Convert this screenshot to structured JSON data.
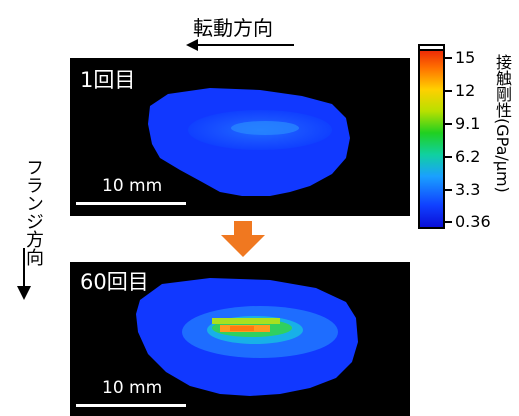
{
  "figure": {
    "rotation_direction_label": "転動方向",
    "flange_direction_label": "フランジ方向",
    "panels": [
      {
        "label": "1回目",
        "scale_bar": "10 mm"
      },
      {
        "label": "60回目",
        "scale_bar": "10 mm"
      }
    ],
    "colorbar": {
      "title": "接触剛性(GPa/µm)",
      "ticks": [
        "15",
        "12",
        "9.1",
        "6.2",
        "3.3",
        "0.36"
      ],
      "max_color": "#e81808",
      "min_color": "#0a0fd8"
    },
    "transition_arrow_color": "#f07820"
  }
}
